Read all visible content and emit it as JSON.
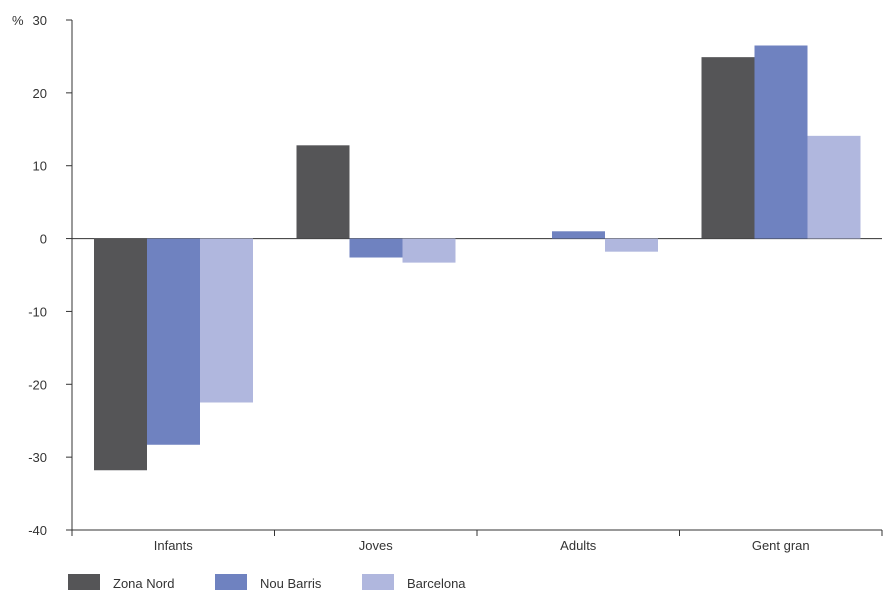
{
  "chart_data": {
    "type": "bar",
    "title": "",
    "xlabel": "",
    "ylabel": "",
    "y_unit": "%",
    "categories": [
      "Infants",
      "Joves",
      "Adults",
      "Gent gran"
    ],
    "series": [
      {
        "name": "Zona Nord",
        "color": "#555557",
        "values": [
          -31.8,
          12.8,
          0,
          24.9
        ]
      },
      {
        "name": "Nou Barris",
        "color": "#6f82c0",
        "values": [
          -28.3,
          -2.6,
          1.0,
          26.5
        ]
      },
      {
        "name": "Barcelona",
        "color": "#b0b7de",
        "values": [
          -22.5,
          -3.3,
          -1.8,
          14.1
        ]
      }
    ],
    "ylim": [
      -40,
      30
    ],
    "yticks": [
      -40,
      -30,
      -20,
      -10,
      0,
      10,
      20,
      30
    ],
    "grid": false,
    "legend_position": "bottom-left"
  }
}
